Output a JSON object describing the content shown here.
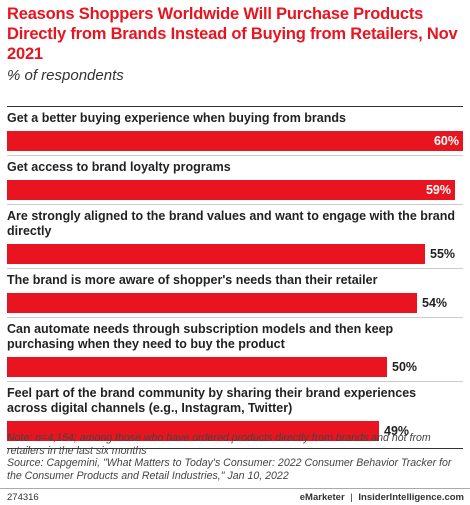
{
  "header": {
    "title": "Reasons Shoppers Worldwide Will Purchase Products Directly from Brands Instead of Buying from Retailers, Nov 2021",
    "subtitle": "% of respondents"
  },
  "chart_data": {
    "type": "bar",
    "orientation": "horizontal",
    "categories": [
      "Get a better buying experience when buying from brands",
      "Get access to brand loyalty programs",
      "Are strongly aligned to the brand values and want to engage with the brand directly",
      "The brand is more aware of shopper's needs than their retailer",
      "Can automate needs through subscription models and then keep purchasing when they need to buy the product",
      "Feel part of the brand community by sharing their brand experiences across digital channels (e.g., Instagram, Twitter)"
    ],
    "values": [
      60,
      59,
      55,
      54,
      50,
      49
    ],
    "value_labels": [
      "60%",
      "59%",
      "55%",
      "54%",
      "50%",
      "49%"
    ],
    "xlim": [
      0,
      60
    ],
    "bar_color": "#e8141f",
    "grid": false,
    "legend": "none"
  },
  "note": "Note: n=4,154; among those who have ordered products directly from brands and not from retailers in the last six months",
  "source": "Source: Capgemini, \"What Matters to Today's Consumer: 2022 Consumer Behavior Tracker for the Consumer Products and Retail Industries,\" Jan 10, 2022",
  "footer": {
    "chart_id": "274316",
    "brand_left": "eMarketer",
    "separator": "|",
    "brand_right": "InsiderIntelligence.com"
  }
}
